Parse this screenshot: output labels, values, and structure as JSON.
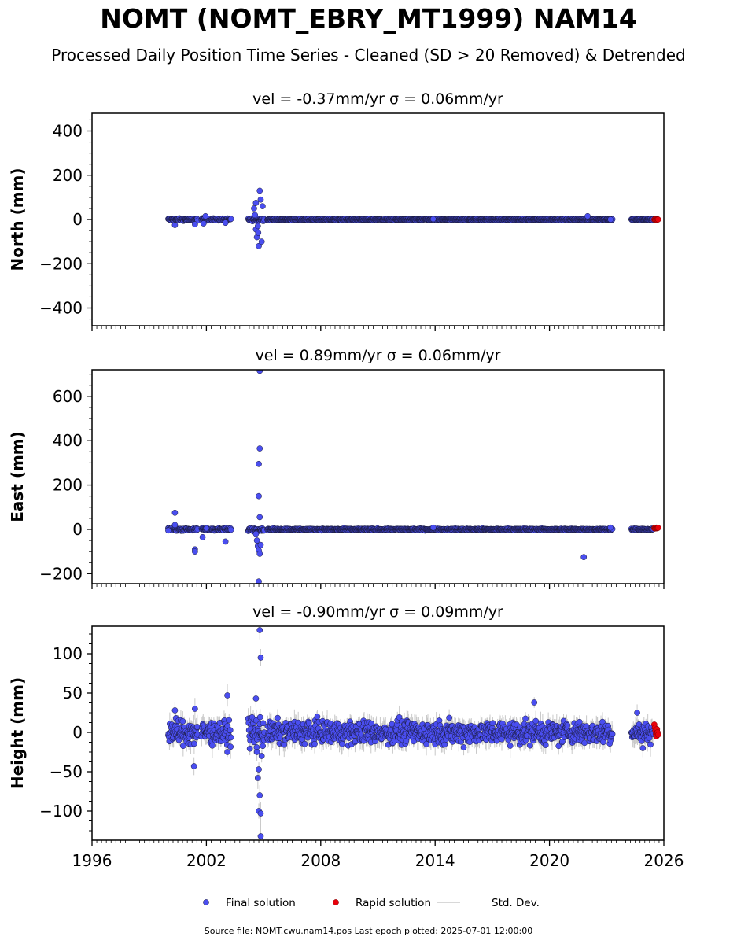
{
  "title": "NOMT (NOMT_EBRY_MT1999) NAM14",
  "subtitle": "Processed Daily Position Time Series - Cleaned (SD > 20 Removed) & Detrended",
  "footer": "Source file: NOMT.cwu.nam14.pos  Last epoch plotted: 2025-07-01 12:00:00",
  "legend": {
    "placement": "bottom-center",
    "items": [
      {
        "label": "Final solution",
        "color": "#4a4ef0"
      },
      {
        "label": "Rapid solution",
        "color": "#e8000b"
      },
      {
        "label": "Std. Dev.",
        "color": "#cccccc"
      }
    ]
  },
  "colors": {
    "final": "#4a4ef0",
    "rapid": "#e8000b",
    "edge": "#1a1a3a",
    "stddev": "#c8c8c8"
  },
  "chart_data": [
    {
      "type": "scatter",
      "panel": "north",
      "title": "vel = -0.37mm/yr   σ = 0.06mm/yr",
      "ylabel": "North (mm)",
      "ylim": [
        -480,
        480
      ],
      "yticks": [
        -400,
        -200,
        0,
        200,
        400
      ],
      "ytick_labels": [
        "−400",
        "−200",
        "0",
        "200",
        "400"
      ],
      "xlim": [
        1996,
        2026
      ],
      "grid": false,
      "segments": [
        {
          "start": 2000.0,
          "end": 2001.55,
          "amp": 3.5
        },
        {
          "start": 2001.75,
          "end": 2003.3,
          "amp": 3.5
        },
        {
          "start": 2004.2,
          "end": 2005.05,
          "amp": 4.5
        },
        {
          "start": 2005.2,
          "end": 2023.3,
          "amp": 2.2
        },
        {
          "start": 2024.3,
          "end": 2025.45,
          "amp": 2.2
        }
      ],
      "outliers": [
        {
          "x": 2000.35,
          "y": -25
        },
        {
          "x": 2001.4,
          "y": -22
        },
        {
          "x": 2001.85,
          "y": -18
        },
        {
          "x": 2001.95,
          "y": 15
        },
        {
          "x": 2003.0,
          "y": -15
        },
        {
          "x": 2004.5,
          "y": 50
        },
        {
          "x": 2004.55,
          "y": 20
        },
        {
          "x": 2004.6,
          "y": -45
        },
        {
          "x": 2004.65,
          "y": -80
        },
        {
          "x": 2004.7,
          "y": -30
        },
        {
          "x": 2004.75,
          "y": -120
        },
        {
          "x": 2004.8,
          "y": 130
        },
        {
          "x": 2004.85,
          "y": 90
        },
        {
          "x": 2004.9,
          "y": -100
        },
        {
          "x": 2004.95,
          "y": 60
        },
        {
          "x": 2004.6,
          "y": 75
        },
        {
          "x": 2004.72,
          "y": -60
        },
        {
          "x": 2022.0,
          "y": 15
        },
        {
          "x": 2013.9,
          "y": 2
        },
        {
          "x": 2023.2,
          "y": 0
        }
      ],
      "rapid": {
        "start": 2025.5,
        "end": 2025.7,
        "values": [
          0,
          1,
          -1,
          2,
          0,
          -2,
          1,
          0
        ]
      }
    },
    {
      "type": "scatter",
      "panel": "east",
      "title": "vel = 0.89mm/yr   σ = 0.06mm/yr",
      "ylabel": "East (mm)",
      "ylim": [
        -245,
        720
      ],
      "yticks": [
        -200,
        0,
        200,
        400,
        600
      ],
      "ytick_labels": [
        "−200",
        "0",
        "200",
        "400",
        "600"
      ],
      "xlim": [
        1996,
        2026
      ],
      "grid": false,
      "segments": [
        {
          "start": 2000.0,
          "end": 2001.55,
          "amp": 4.0
        },
        {
          "start": 2001.75,
          "end": 2003.3,
          "amp": 3.5
        },
        {
          "start": 2004.2,
          "end": 2005.05,
          "amp": 5.0
        },
        {
          "start": 2005.2,
          "end": 2023.3,
          "amp": 2.5
        },
        {
          "start": 2024.3,
          "end": 2025.45,
          "amp": 2.5
        }
      ],
      "outliers": [
        {
          "x": 2000.35,
          "y": 75
        },
        {
          "x": 2000.35,
          "y": 20
        },
        {
          "x": 2000.0,
          "y": -5
        },
        {
          "x": 2001.4,
          "y": -90
        },
        {
          "x": 2001.4,
          "y": -100
        },
        {
          "x": 2001.8,
          "y": -35
        },
        {
          "x": 2002.0,
          "y": 5
        },
        {
          "x": 2003.0,
          "y": -55
        },
        {
          "x": 2004.8,
          "y": 715
        },
        {
          "x": 2004.8,
          "y": 365
        },
        {
          "x": 2004.75,
          "y": 295
        },
        {
          "x": 2004.75,
          "y": 150
        },
        {
          "x": 2004.8,
          "y": 55
        },
        {
          "x": 2004.6,
          "y": -20
        },
        {
          "x": 2004.65,
          "y": -50
        },
        {
          "x": 2004.7,
          "y": -75
        },
        {
          "x": 2004.75,
          "y": -95
        },
        {
          "x": 2004.8,
          "y": -110
        },
        {
          "x": 2004.85,
          "y": -70
        },
        {
          "x": 2004.75,
          "y": -235
        },
        {
          "x": 2021.8,
          "y": -125
        },
        {
          "x": 2013.9,
          "y": 8
        },
        {
          "x": 2023.2,
          "y": 8
        }
      ],
      "rapid": {
        "start": 2025.5,
        "end": 2025.7,
        "values": [
          5,
          7,
          4,
          6,
          8,
          5,
          6,
          7
        ]
      }
    },
    {
      "type": "scatter",
      "panel": "height",
      "title": "vel = -0.90mm/yr   σ = 0.09mm/yr",
      "ylabel": "Height (mm)",
      "ylim": [
        -137,
        135
      ],
      "yticks": [
        -100,
        -50,
        0,
        50,
        100
      ],
      "ytick_labels": [
        "−100",
        "−50",
        "0",
        "50",
        "100"
      ],
      "xlim": [
        1996,
        2026
      ],
      "grid": false,
      "segments": [
        {
          "start": 2000.0,
          "end": 2001.55,
          "amp": 11
        },
        {
          "start": 2001.75,
          "end": 2003.3,
          "amp": 10
        },
        {
          "start": 2004.2,
          "end": 2005.05,
          "amp": 14
        },
        {
          "start": 2005.2,
          "end": 2023.3,
          "amp": 10
        },
        {
          "start": 2024.3,
          "end": 2025.45,
          "amp": 8
        }
      ],
      "outliers": [
        {
          "x": 2000.35,
          "y": 28
        },
        {
          "x": 2001.35,
          "y": -43
        },
        {
          "x": 2001.4,
          "y": 30
        },
        {
          "x": 2003.1,
          "y": 47
        },
        {
          "x": 2003.1,
          "y": -25
        },
        {
          "x": 2004.8,
          "y": 130
        },
        {
          "x": 2004.85,
          "y": 95
        },
        {
          "x": 2004.6,
          "y": 43
        },
        {
          "x": 2004.7,
          "y": -58
        },
        {
          "x": 2004.75,
          "y": -47
        },
        {
          "x": 2004.8,
          "y": -80
        },
        {
          "x": 2004.75,
          "y": -100
        },
        {
          "x": 2004.85,
          "y": -103
        },
        {
          "x": 2004.85,
          "y": -132
        },
        {
          "x": 2004.9,
          "y": -30
        },
        {
          "x": 2004.65,
          "y": -25
        },
        {
          "x": 2019.2,
          "y": 38
        },
        {
          "x": 2024.6,
          "y": 25
        },
        {
          "x": 2024.9,
          "y": -20
        }
      ],
      "rapid": {
        "start": 2025.5,
        "end": 2025.7,
        "values": [
          10,
          6,
          2,
          -2,
          -5,
          4,
          0,
          -3
        ]
      }
    }
  ],
  "xaxis": {
    "range": [
      1996,
      2026
    ],
    "ticks": [
      1996,
      2002,
      2008,
      2014,
      2020,
      2026
    ],
    "tick_labels": [
      "1996",
      "2002",
      "2008",
      "2014",
      "2020",
      "2026"
    ]
  }
}
